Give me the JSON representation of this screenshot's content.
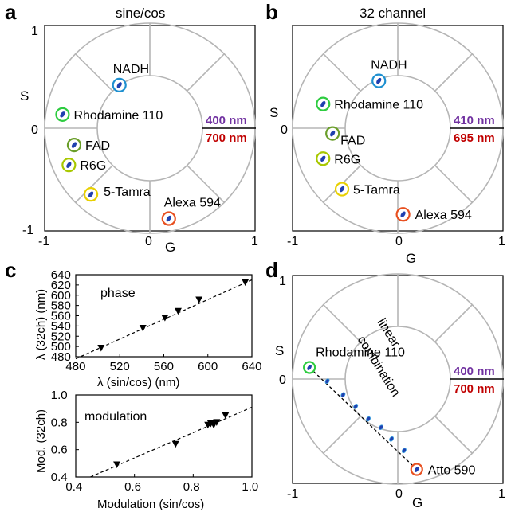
{
  "panels": {
    "a": {
      "letter": "a",
      "title": "sine/cos",
      "x_label": "G",
      "y_label": "S",
      "x_ticks": [
        "-1",
        "0",
        "1"
      ],
      "y_ticks": [
        "1",
        "0",
        "-1"
      ],
      "wavelength_top": "400 nm",
      "wavelength_bottom": "700 nm"
    },
    "b": {
      "letter": "b",
      "title": "32 channel",
      "x_label": "G",
      "y_label": "S",
      "x_ticks": [
        "-1",
        "0",
        "1"
      ],
      "y_ticks": [
        "1",
        "0",
        "-1"
      ],
      "wavelength_top": "410 nm",
      "wavelength_bottom": "695 nm"
    },
    "c": {
      "letter": "c",
      "top_inset": "phase",
      "top_x_label": "λ (sin/cos) (nm)",
      "top_y_label": "λ (32ch) (nm)",
      "bottom_inset": "modulation",
      "bottom_x_label": "Modulation (sin/cos)",
      "bottom_y_label": "Mod. (32ch)"
    },
    "d": {
      "letter": "d",
      "x_label": "G",
      "y_label": "S",
      "x_ticks": [
        "-1",
        "0",
        "1"
      ],
      "y_ticks": [
        "1",
        "0"
      ],
      "wavelength_top": "400 nm",
      "wavelength_bottom": "700 nm",
      "annotation_line1": "linear",
      "annotation_line2": "combination",
      "start_label": "Rhodamine 110",
      "end_label": "Atto 590"
    }
  },
  "colors": {
    "circle": "#b5b5b5",
    "purple": "#7030a0",
    "red": "#c00000",
    "dot": "#2040b0",
    "nadh": "#1e90d0",
    "rhodamine": "#2ecc40",
    "fad": "#6a9e2a",
    "r6g": "#a8c800",
    "tamra": "#e8d000",
    "alexa": "#e85020",
    "atto": "#e85020",
    "combo": "#3aa0e0"
  },
  "chart_data": [
    {
      "panel": "a",
      "type": "scatter",
      "title": "sine/cos",
      "xlabel": "G",
      "ylabel": "S",
      "xlim": [
        -1,
        1
      ],
      "ylim": [
        -1,
        1
      ],
      "points": [
        {
          "name": "NADH",
          "x": -0.29,
          "y": 0.41,
          "ring": "nadh"
        },
        {
          "name": "Rhodamine 110",
          "x": -0.83,
          "y": 0.13,
          "ring": "rhodamine"
        },
        {
          "name": "FAD",
          "x": -0.72,
          "y": -0.16,
          "ring": "fad"
        },
        {
          "name": "R6G",
          "x": -0.77,
          "y": -0.35,
          "ring": "r6g"
        },
        {
          "name": "5-Tamra",
          "x": -0.56,
          "y": -0.63,
          "ring": "tamra"
        },
        {
          "name": "Alexa 594",
          "x": 0.18,
          "y": -0.86,
          "ring": "alexa"
        }
      ]
    },
    {
      "panel": "b",
      "type": "scatter",
      "title": "32 channel",
      "xlabel": "G",
      "ylabel": "S",
      "xlim": [
        -1,
        1
      ],
      "ylim": [
        -1,
        1
      ],
      "points": [
        {
          "name": "NADH",
          "x": -0.18,
          "y": 0.45,
          "ring": "nadh"
        },
        {
          "name": "Rhodamine 110",
          "x": -0.71,
          "y": 0.23,
          "ring": "rhodamine"
        },
        {
          "name": "FAD",
          "x": -0.62,
          "y": -0.05,
          "ring": "fad"
        },
        {
          "name": "R6G",
          "x": -0.71,
          "y": -0.29,
          "ring": "r6g"
        },
        {
          "name": "5-Tamra",
          "x": -0.53,
          "y": -0.58,
          "ring": "tamra"
        },
        {
          "name": "Alexa 594",
          "x": 0.05,
          "y": -0.82,
          "ring": "alexa"
        }
      ]
    },
    {
      "panel": "c-top",
      "type": "scatter",
      "xlabel": "λ (sin/cos) (nm)",
      "ylabel": "λ (32ch) (nm)",
      "xlim": [
        480,
        640
      ],
      "ylim": [
        480,
        640
      ],
      "x_ticks": [
        480,
        520,
        560,
        600,
        640
      ],
      "y_ticks": [
        480,
        500,
        520,
        540,
        560,
        580,
        600,
        620,
        640
      ],
      "x": [
        503,
        541,
        561,
        573,
        592,
        634
      ],
      "y": [
        497,
        536,
        556,
        569,
        591,
        625
      ],
      "fit": [
        [
          480,
          476
        ],
        [
          640,
          630
        ]
      ]
    },
    {
      "panel": "c-bottom",
      "type": "scatter",
      "xlabel": "Modulation (sin/cos)",
      "ylabel": "Mod. (32ch)",
      "xlim": [
        0.4,
        1.0
      ],
      "ylim": [
        0.4,
        1.0
      ],
      "x_ticks": [
        0.4,
        0.6,
        0.8,
        1.0
      ],
      "y_ticks": [
        0.4,
        0.6,
        0.8,
        1.0
      ],
      "x": [
        0.54,
        0.74,
        0.85,
        0.86,
        0.87,
        0.88,
        0.91
      ],
      "y": [
        0.49,
        0.64,
        0.78,
        0.79,
        0.78,
        0.8,
        0.85
      ],
      "fit": [
        [
          0.45,
          0.4
        ],
        [
          1.0,
          0.91
        ]
      ]
    },
    {
      "panel": "d",
      "type": "scatter",
      "xlabel": "G",
      "ylabel": "S",
      "xlim": [
        -1,
        1
      ],
      "ylim": [
        -1,
        1
      ],
      "series": [
        {
          "name": "Rhodamine 110",
          "x": [
            -0.84
          ],
          "y": [
            0.11
          ]
        },
        {
          "name": "linear combination",
          "x": [
            -0.67,
            -0.52,
            -0.4,
            -0.28,
            -0.16,
            -0.06,
            0.06
          ],
          "y": [
            -0.02,
            -0.15,
            -0.26,
            -0.38,
            -0.46,
            -0.57,
            -0.68
          ]
        },
        {
          "name": "Atto 590",
          "x": [
            0.18
          ],
          "y": [
            -0.86
          ]
        }
      ]
    }
  ]
}
